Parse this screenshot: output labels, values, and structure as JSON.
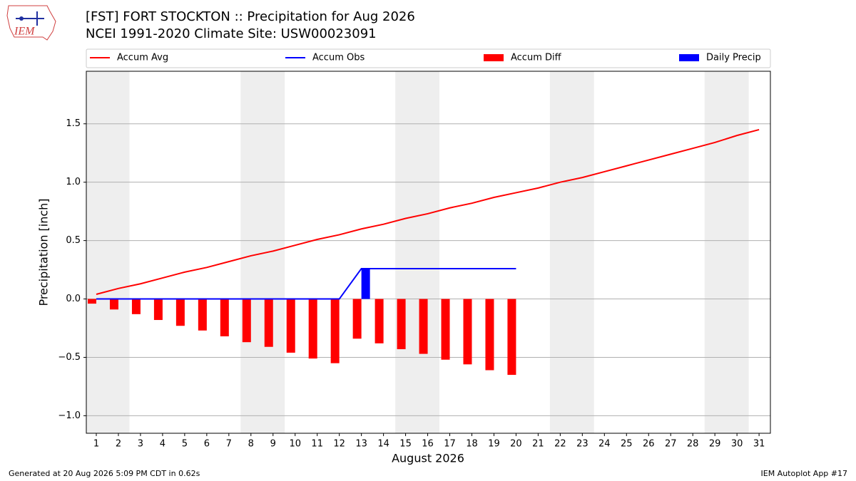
{
  "logo": "IEM",
  "footer": {
    "left": "Generated at 20 Aug 2026 5:09 PM CDT in 0.62s",
    "right": "IEM Autoplot App #17"
  },
  "chart_data": {
    "type": "bar",
    "title": "[FST] FORT STOCKTON :: Precipitation for Aug 2026",
    "subtitle": "NCEI 1991-2020 Climate Site: USW00023091",
    "xlabel": "August 2026",
    "ylabel": "Precipitation [inch]",
    "categories": [
      "1",
      "2",
      "3",
      "4",
      "5",
      "6",
      "7",
      "8",
      "9",
      "10",
      "11",
      "12",
      "13",
      "14",
      "15",
      "16",
      "17",
      "18",
      "19",
      "20",
      "21",
      "22",
      "23",
      "24",
      "25",
      "26",
      "27",
      "28",
      "29",
      "30",
      "31"
    ],
    "ylim": [
      -1.15,
      1.95
    ],
    "yticks": [
      {
        "value": -1.0,
        "label": "−1.0"
      },
      {
        "value": -0.5,
        "label": "−0.5"
      },
      {
        "value": 0.0,
        "label": "0.0"
      },
      0.5,
      {
        "value": 1.0,
        "label": "1.0"
      },
      1.5
    ],
    "grid": true,
    "legend": "top",
    "series": [
      {
        "name": "Accum Avg",
        "color": "#ff0000",
        "type": "line",
        "values": [
          0.04,
          0.09,
          0.13,
          0.18,
          0.23,
          0.27,
          0.32,
          0.37,
          0.41,
          0.46,
          0.51,
          0.55,
          0.6,
          0.64,
          0.69,
          0.73,
          0.78,
          0.82,
          0.87,
          0.91,
          0.95,
          1.0,
          1.04,
          1.09,
          1.14,
          1.19,
          1.24,
          1.29,
          1.34,
          1.4,
          1.45
        ]
      },
      {
        "name": "Accum Obs",
        "color": "#0000ff",
        "type": "line",
        "values": [
          0,
          0,
          0,
          0,
          0,
          0,
          0,
          0,
          0,
          0,
          0,
          0,
          0.26,
          0.26,
          0.26,
          0.26,
          0.26,
          0.26,
          0.26,
          0.26,
          null,
          null,
          null,
          null,
          null,
          null,
          null,
          null,
          null,
          null,
          null
        ]
      },
      {
        "name": "Accum Diff",
        "color": "#ff0000",
        "type": "bar",
        "offset": "left",
        "values": [
          -0.04,
          -0.09,
          -0.13,
          -0.18,
          -0.23,
          -0.27,
          -0.32,
          -0.37,
          -0.41,
          -0.46,
          -0.51,
          -0.55,
          -0.34,
          -0.38,
          -0.43,
          -0.47,
          -0.52,
          -0.56,
          -0.61,
          -0.65,
          null,
          null,
          null,
          null,
          null,
          null,
          null,
          null,
          null,
          null,
          null
        ]
      },
      {
        "name": "Daily Precip",
        "color": "#0000ff",
        "type": "bar",
        "offset": "right",
        "values": [
          0,
          0,
          0,
          0,
          0,
          0,
          0,
          0,
          0,
          0,
          0,
          0,
          0.26,
          0,
          0,
          0,
          0,
          0,
          0,
          0,
          null,
          null,
          null,
          null,
          null,
          null,
          null,
          null,
          null,
          null,
          null
        ]
      }
    ]
  }
}
